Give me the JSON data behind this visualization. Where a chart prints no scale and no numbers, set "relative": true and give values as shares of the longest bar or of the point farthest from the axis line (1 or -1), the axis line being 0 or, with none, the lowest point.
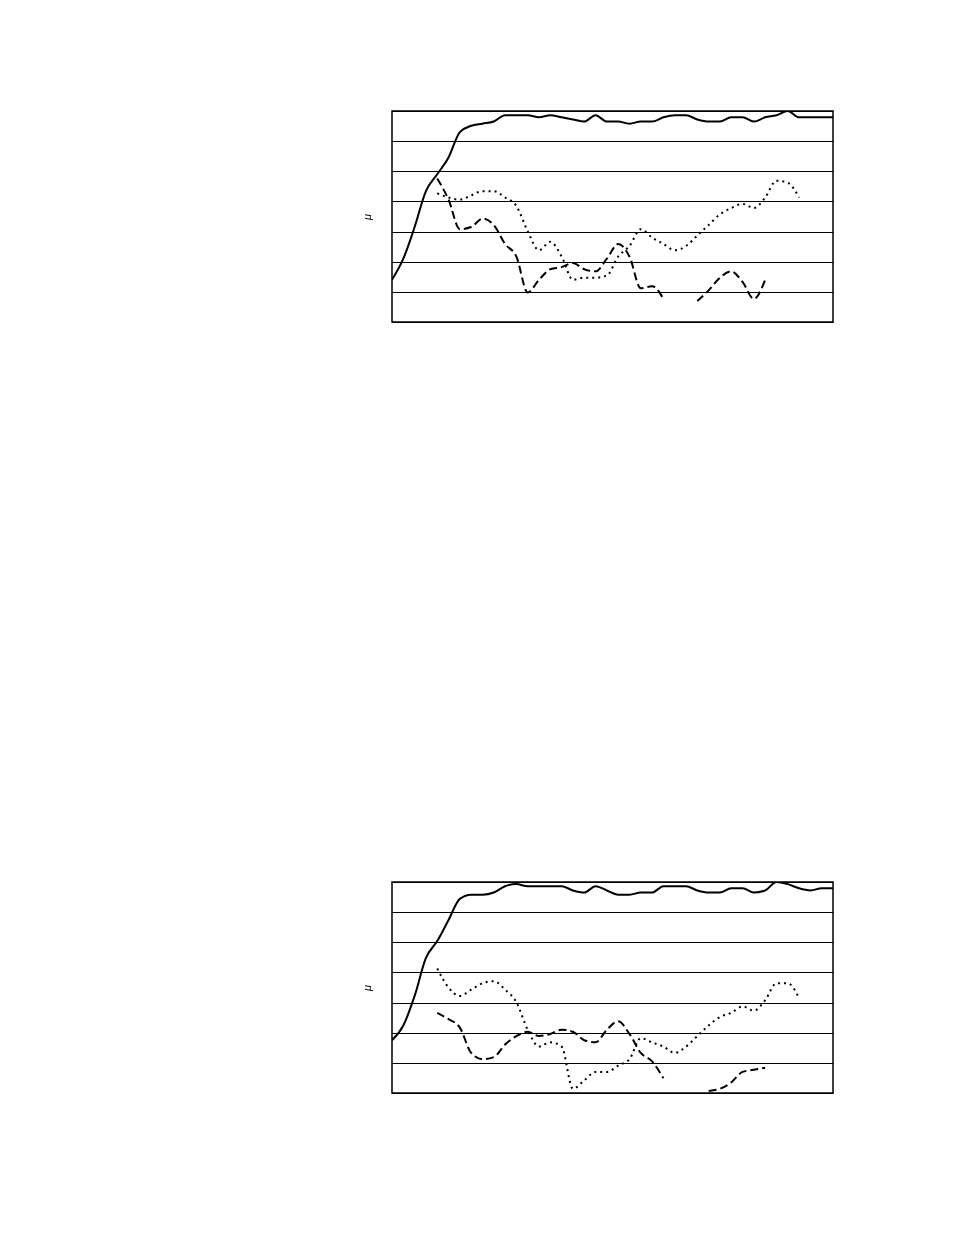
{
  "chart_data": [
    {
      "type": "line",
      "relative": true,
      "ylabel": "μ",
      "grid": "y",
      "categories": [
        null,
        null,
        null,
        null,
        null,
        null,
        null,
        null,
        null,
        null,
        null,
        null,
        null,
        null,
        null,
        null,
        null,
        null,
        null,
        null,
        null,
        null,
        null,
        null,
        null,
        null,
        null,
        null,
        null,
        null,
        null,
        null,
        null,
        null,
        null,
        null,
        null,
        null,
        null,
        null
      ],
      "series": [
        {
          "color": "#000000",
          "line_style": "solid",
          "values": [
            0.2,
            0.3,
            0.45,
            0.62,
            0.7,
            0.78,
            0.9,
            0.93,
            0.94,
            0.95,
            0.98,
            0.98,
            0.98,
            0.97,
            0.98,
            0.97,
            0.96,
            0.95,
            0.98,
            0.95,
            0.95,
            0.94,
            0.95,
            0.95,
            0.97,
            0.98,
            0.98,
            0.96,
            0.95,
            0.95,
            0.97,
            0.97,
            0.95,
            0.97,
            0.98,
            1.0,
            0.97,
            0.97,
            0.97,
            0.97
          ]
        },
        {
          "color": "#000000",
          "line_style": "dotted",
          "values": [
            null,
            null,
            null,
            null,
            0.61,
            0.59,
            0.58,
            0.6,
            0.62,
            0.62,
            0.59,
            0.55,
            0.43,
            0.34,
            0.38,
            0.31,
            0.2,
            0.21,
            0.21,
            0.22,
            0.31,
            0.36,
            0.44,
            0.4,
            0.37,
            0.34,
            0.36,
            0.41,
            0.46,
            0.51,
            0.54,
            0.56,
            0.54,
            0.59,
            0.67,
            0.66,
            0.59,
            null,
            null,
            null
          ]
        },
        {
          "color": "#000000",
          "line_style": "dashed",
          "values": [
            null,
            null,
            null,
            null,
            0.68,
            0.58,
            0.44,
            0.45,
            0.49,
            0.46,
            0.37,
            0.31,
            0.14,
            0.2,
            0.25,
            0.26,
            0.28,
            0.25,
            0.24,
            0.3,
            0.37,
            0.31,
            0.16,
            0.17,
            0.11,
            null,
            null,
            0.1,
            0.15,
            0.21,
            0.24,
            0.19,
            0.11,
            0.2,
            null,
            null,
            null,
            null,
            null,
            null
          ]
        }
      ]
    },
    {
      "type": "line",
      "relative": true,
      "ylabel": "μ",
      "grid": "y",
      "categories": [
        null,
        null,
        null,
        null,
        null,
        null,
        null,
        null,
        null,
        null,
        null,
        null,
        null,
        null,
        null,
        null,
        null,
        null,
        null,
        null,
        null,
        null,
        null,
        null,
        null,
        null,
        null,
        null,
        null,
        null,
        null,
        null,
        null,
        null,
        null,
        null,
        null,
        null,
        null,
        null
      ],
      "series": [
        {
          "color": "#000000",
          "line_style": "solid",
          "values": [
            0.25,
            0.32,
            0.46,
            0.64,
            0.72,
            0.82,
            0.92,
            0.94,
            0.94,
            0.95,
            0.98,
            0.99,
            0.98,
            0.98,
            0.98,
            0.98,
            0.96,
            0.95,
            0.98,
            0.96,
            0.94,
            0.94,
            0.95,
            0.95,
            0.98,
            0.98,
            0.98,
            0.96,
            0.95,
            0.95,
            0.97,
            0.97,
            0.95,
            0.96,
            1.0,
            0.99,
            0.97,
            0.96,
            0.97,
            0.97
          ]
        },
        {
          "color": "#000000",
          "line_style": "dotted",
          "values": [
            null,
            null,
            null,
            null,
            0.59,
            0.5,
            0.46,
            0.49,
            0.52,
            0.53,
            0.49,
            0.43,
            0.3,
            0.22,
            0.24,
            0.22,
            0.02,
            0.06,
            0.1,
            0.1,
            0.13,
            0.16,
            0.26,
            0.24,
            0.22,
            0.19,
            0.22,
            0.27,
            0.32,
            0.36,
            0.38,
            0.41,
            0.39,
            0.44,
            0.52,
            0.52,
            0.45,
            null,
            null,
            null
          ]
        },
        {
          "color": "#000000",
          "line_style": "dashed",
          "values": [
            null,
            null,
            null,
            null,
            0.38,
            0.35,
            0.31,
            0.19,
            0.16,
            0.17,
            0.23,
            0.27,
            0.29,
            0.27,
            0.28,
            0.3,
            0.29,
            0.25,
            0.24,
            0.3,
            0.34,
            0.28,
            0.19,
            0.15,
            0.07,
            null,
            null,
            null,
            0.01,
            0.02,
            0.05,
            0.1,
            0.11,
            0.12,
            null,
            null,
            null,
            null,
            null,
            null
          ]
        }
      ]
    }
  ]
}
